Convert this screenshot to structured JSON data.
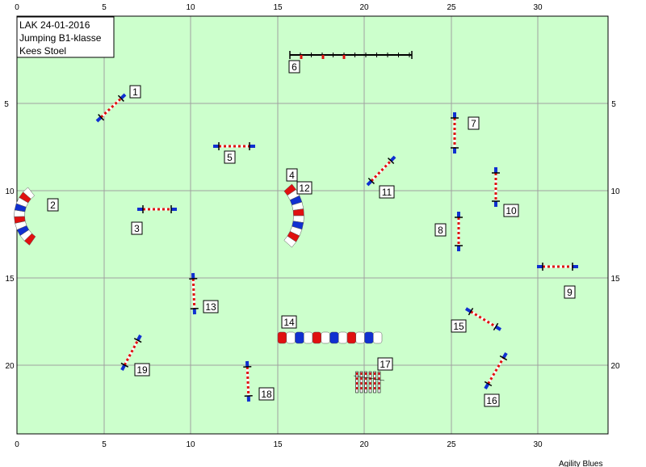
{
  "info": {
    "line1": "LAK 24-01-2016",
    "line2": "Jumping B1-klasse",
    "line3": "Kees Stoel"
  },
  "credit": "Agility Blues",
  "colors": {
    "field": "#ccffcc",
    "grid": "#a0a0a0",
    "blue": "#1030d0",
    "red": "#e01010",
    "white": "#ffffff"
  },
  "axis": {
    "x_ticks_top": [
      "0",
      "5",
      "10",
      "15",
      "20",
      "25",
      "30"
    ],
    "x_ticks_bottom": [
      "0",
      "5",
      "10",
      "15",
      "20",
      "25",
      "30"
    ],
    "y_ticks_left": [
      "5",
      "10",
      "15",
      "20"
    ],
    "y_ticks_right": [
      "5",
      "10",
      "15",
      "20"
    ]
  },
  "obstacles": [
    {
      "type": "jump",
      "label": "1"
    },
    {
      "type": "tunnel",
      "label": "2"
    },
    {
      "type": "jump",
      "label": "3"
    },
    {
      "type": "tunnel",
      "label": "4"
    },
    {
      "type": "jump",
      "label": "5"
    },
    {
      "type": "dogwalk",
      "label": "6"
    },
    {
      "type": "jump",
      "label": "7"
    },
    {
      "type": "jump",
      "label": "8"
    },
    {
      "type": "jump",
      "label": "9"
    },
    {
      "type": "jump",
      "label": "10"
    },
    {
      "type": "jump",
      "label": "11"
    },
    {
      "type": "tunnel",
      "label": "12"
    },
    {
      "type": "jump",
      "label": "13"
    },
    {
      "type": "tunnel",
      "label": "14"
    },
    {
      "type": "jump",
      "label": "15"
    },
    {
      "type": "jump",
      "label": "16"
    },
    {
      "type": "weave",
      "label": "17"
    },
    {
      "type": "jump",
      "label": "18"
    },
    {
      "type": "jump",
      "label": "19"
    }
  ]
}
